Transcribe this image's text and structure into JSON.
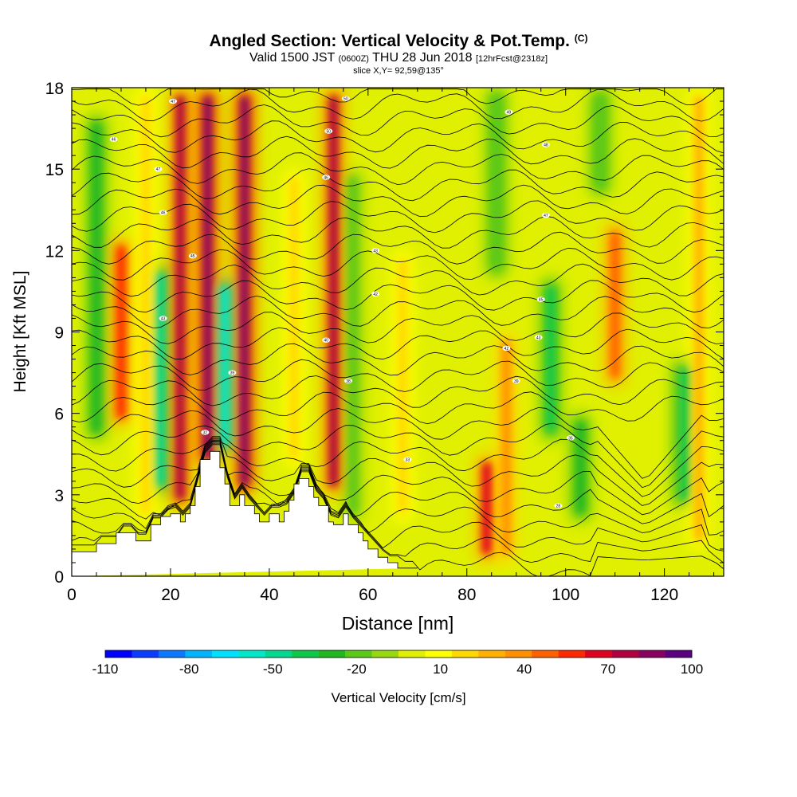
{
  "title": {
    "main": "Angled Section: Vertical Velocity & Pot.Temp.",
    "copyright_mark": "(C)",
    "valid_prefix": "Valid 1500 JST",
    "valid_zulu": "(0600Z)",
    "valid_date": "THU 28 Jun 2018",
    "forecast": "[12hrFcst@2318z]",
    "slice": "slice X,Y= 92,59@135°"
  },
  "chart_data": {
    "type": "heatmap",
    "xlabel": "Distance [nm]",
    "ylabel": "Height [Kft MSL]",
    "xlim": [
      0,
      132
    ],
    "ylim": [
      0,
      18
    ],
    "x_ticks": [
      0,
      20,
      40,
      60,
      80,
      100,
      120
    ],
    "y_ticks": [
      0,
      3,
      6,
      9,
      12,
      15,
      18
    ],
    "colorbar": {
      "label": "Vertical Velocity [cm/s]",
      "tick_labels": [
        "-110",
        "-80",
        "-50",
        "-20",
        "10",
        "40",
        "70",
        "100"
      ],
      "tick_values": [
        -110,
        -80,
        -50,
        -20,
        10,
        40,
        70,
        100
      ],
      "levels": [
        -110,
        -100,
        -90,
        -80,
        -70,
        -60,
        -50,
        -40,
        -30,
        -20,
        -10,
        0,
        10,
        20,
        30,
        40,
        50,
        60,
        70,
        80,
        90,
        100
      ],
      "colors": [
        "#0000ff",
        "#0b3cff",
        "#0a78ff",
        "#00b4ff",
        "#00e0ff",
        "#00e8c8",
        "#00d890",
        "#10c848",
        "#20b820",
        "#5cc818",
        "#98d810",
        "#e0f000",
        "#ffff00",
        "#ffd800",
        "#ffb000",
        "#ff9000",
        "#ff6000",
        "#ff2800",
        "#e00020",
        "#b00040",
        "#880060",
        "#5a0080"
      ]
    },
    "background_vv_value": 5,
    "updrafts": [
      {
        "x": 10,
        "y0": 5.5,
        "y1": 12.5,
        "value": 60
      },
      {
        "x": 15,
        "y0": 2.0,
        "y1": 18.0,
        "value": 25
      },
      {
        "x": 22,
        "y0": 2.5,
        "y1": 18.0,
        "value": 80
      },
      {
        "x": 27.5,
        "y0": 4.0,
        "y1": 18.0,
        "value": 95
      },
      {
        "x": 35,
        "y0": 3.0,
        "y1": 18.0,
        "value": 95
      },
      {
        "x": 45,
        "y0": 4.0,
        "y1": 15.0,
        "value": 25
      },
      {
        "x": 53,
        "y0": 3.0,
        "y1": 18.0,
        "value": 80
      },
      {
        "x": 67,
        "y0": 2.0,
        "y1": 12.0,
        "value": 25
      },
      {
        "x": 84,
        "y0": 0.5,
        "y1": 4.5,
        "value": 70
      },
      {
        "x": 88,
        "y0": 0.5,
        "y1": 9.0,
        "value": 40
      },
      {
        "x": 110,
        "y0": 7.0,
        "y1": 13.0,
        "value": 55
      },
      {
        "x": 127,
        "y0": 1.0,
        "y1": 18.0,
        "value": 30
      }
    ],
    "downdrafts": [
      {
        "x": 5,
        "y0": 5.0,
        "y1": 17.0,
        "value": -30
      },
      {
        "x": 18,
        "y0": 3.0,
        "y1": 11.5,
        "value": -50
      },
      {
        "x": 31,
        "y0": 4.5,
        "y1": 11.0,
        "value": -55
      },
      {
        "x": 57,
        "y0": 2.0,
        "y1": 15.0,
        "value": -15
      },
      {
        "x": 86,
        "y0": 11.0,
        "y1": 18.0,
        "value": -20
      },
      {
        "x": 97,
        "y0": 5.0,
        "y1": 11.0,
        "value": -35
      },
      {
        "x": 103,
        "y0": 2.0,
        "y1": 6.0,
        "value": -25
      },
      {
        "x": 124,
        "y0": 2.5,
        "y1": 8.0,
        "value": -40
      },
      {
        "x": 107,
        "y0": 14.0,
        "y1": 18.0,
        "value": -20
      }
    ],
    "terrain": {
      "x": [
        0,
        1,
        5,
        5,
        9,
        9,
        13,
        13,
        16,
        16,
        18,
        18,
        20,
        20,
        22,
        22,
        23,
        23,
        24,
        24,
        25,
        25,
        26,
        26,
        28,
        28,
        30,
        30,
        31,
        31,
        32,
        32,
        34,
        34,
        35,
        35,
        37,
        37,
        38,
        38,
        40,
        40,
        42,
        42,
        43,
        43,
        44,
        44,
        45,
        45,
        46,
        46,
        48,
        48,
        49,
        49,
        50,
        50,
        52,
        52,
        53,
        53,
        55,
        55,
        56,
        56,
        58,
        58,
        59,
        59,
        60,
        60,
        62,
        62,
        64,
        64,
        66,
        66,
        68,
        68,
        70,
        70,
        72,
        72,
        132
      ],
      "y": [
        0.9,
        0.9,
        0.9,
        1.2,
        1.2,
        1.6,
        1.6,
        1.3,
        1.3,
        1.9,
        1.9,
        2.2,
        2.2,
        2.3,
        2.3,
        2.0,
        2.0,
        2.3,
        2.3,
        2.6,
        2.6,
        3.3,
        3.3,
        4.3,
        4.3,
        4.6,
        4.6,
        4.0,
        4.0,
        3.4,
        3.4,
        2.6,
        2.6,
        3.0,
        3.0,
        2.6,
        2.6,
        2.3,
        2.3,
        2.0,
        2.0,
        2.3,
        2.3,
        2.0,
        2.0,
        2.4,
        2.4,
        2.8,
        2.8,
        3.4,
        3.4,
        3.6,
        3.6,
        3.3,
        3.3,
        2.9,
        2.9,
        2.6,
        2.6,
        2.0,
        2.0,
        1.9,
        1.9,
        2.3,
        2.3,
        1.9,
        1.9,
        1.6,
        1.6,
        1.3,
        1.3,
        1.0,
        1.0,
        0.7,
        0.7,
        0.5,
        0.5,
        0.3,
        0.3,
        0.3,
        0.3
      ]
    },
    "theta_levels": [
      19,
      20,
      21,
      22,
      23,
      24,
      25,
      26,
      27,
      28,
      29,
      30,
      31,
      32,
      33,
      34,
      35,
      36,
      37,
      38,
      39,
      40,
      41,
      42,
      43,
      44,
      45,
      46,
      47,
      48,
      49
    ],
    "theta_labels": [
      {
        "x": 8.5,
        "y": 16.1,
        "text": "46"
      },
      {
        "x": 20.5,
        "y": 17.5,
        "text": "47"
      },
      {
        "x": 17.5,
        "y": 15.0,
        "text": "47"
      },
      {
        "x": 18.5,
        "y": 13.4,
        "text": "46"
      },
      {
        "x": 24.5,
        "y": 11.8,
        "text": "45"
      },
      {
        "x": 18.5,
        "y": 9.5,
        "text": "43"
      },
      {
        "x": 32.5,
        "y": 7.5,
        "text": "39"
      },
      {
        "x": 27.0,
        "y": 5.3,
        "text": "32"
      },
      {
        "x": 55.5,
        "y": 17.6,
        "text": "50"
      },
      {
        "x": 52.0,
        "y": 16.4,
        "text": "50"
      },
      {
        "x": 51.5,
        "y": 14.7,
        "text": "46"
      },
      {
        "x": 61.5,
        "y": 12.0,
        "text": "43"
      },
      {
        "x": 61.5,
        "y": 10.4,
        "text": "42"
      },
      {
        "x": 51.5,
        "y": 8.7,
        "text": "40"
      },
      {
        "x": 56.0,
        "y": 7.2,
        "text": "38"
      },
      {
        "x": 68.0,
        "y": 4.3,
        "text": "33"
      },
      {
        "x": 88.5,
        "y": 17.1,
        "text": "49"
      },
      {
        "x": 96.0,
        "y": 15.9,
        "text": "48"
      },
      {
        "x": 96.0,
        "y": 13.3,
        "text": "47"
      },
      {
        "x": 95.0,
        "y": 10.2,
        "text": "45"
      },
      {
        "x": 94.5,
        "y": 8.8,
        "text": "43"
      },
      {
        "x": 88.0,
        "y": 8.4,
        "text": "42"
      },
      {
        "x": 90.0,
        "y": 7.2,
        "text": "39"
      },
      {
        "x": 101.0,
        "y": 5.1,
        "text": "35"
      },
      {
        "x": 98.5,
        "y": 2.6,
        "text": "28"
      }
    ]
  }
}
